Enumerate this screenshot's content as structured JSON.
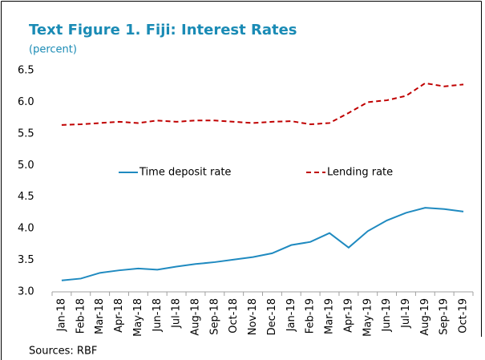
{
  "chart_data": {
    "type": "line",
    "title": "Text Figure 1. Fiji: Interest Rates",
    "subtitle": "(percent)",
    "source": "Sources: RBF",
    "categories": [
      "Jan-18",
      "Feb-18",
      "Mar-18",
      "Apr-18",
      "May-18",
      "Jun-18",
      "Jul-18",
      "Aug-18",
      "Sep-18",
      "Oct-18",
      "Nov-18",
      "Dec-18",
      "Jan-19",
      "Feb-19",
      "Mar-19",
      "Apr-19",
      "May-19",
      "Jun-19",
      "Jul-19",
      "Aug-19",
      "Sep-19",
      "Oct-19"
    ],
    "series": [
      {
        "name": "Time deposit rate",
        "color": "#1f8ac0",
        "dash": "solid",
        "values": [
          3.18,
          3.21,
          3.3,
          3.34,
          3.37,
          3.35,
          3.4,
          3.44,
          3.47,
          3.51,
          3.55,
          3.61,
          3.74,
          3.79,
          3.93,
          3.7,
          3.96,
          4.13,
          4.25,
          4.33,
          4.31,
          4.27
        ]
      },
      {
        "name": "Lending rate",
        "color": "#c00000",
        "dash": "dashed",
        "values": [
          5.64,
          5.65,
          5.67,
          5.69,
          5.67,
          5.71,
          5.69,
          5.71,
          5.71,
          5.69,
          5.67,
          5.69,
          5.7,
          5.65,
          5.67,
          5.83,
          6.0,
          6.03,
          6.1,
          6.3,
          6.25,
          6.28
        ]
      }
    ],
    "ylim": [
      3.0,
      6.5
    ],
    "yticks": [
      {
        "value": 3,
        "label": "3.0"
      },
      3.5,
      {
        "value": 4,
        "label": "4.0"
      },
      4.5,
      {
        "value": 5,
        "label": "5.0"
      },
      5.5,
      {
        "value": 6,
        "label": "6.0"
      },
      6.5
    ],
    "grid": false,
    "legend": "center"
  }
}
